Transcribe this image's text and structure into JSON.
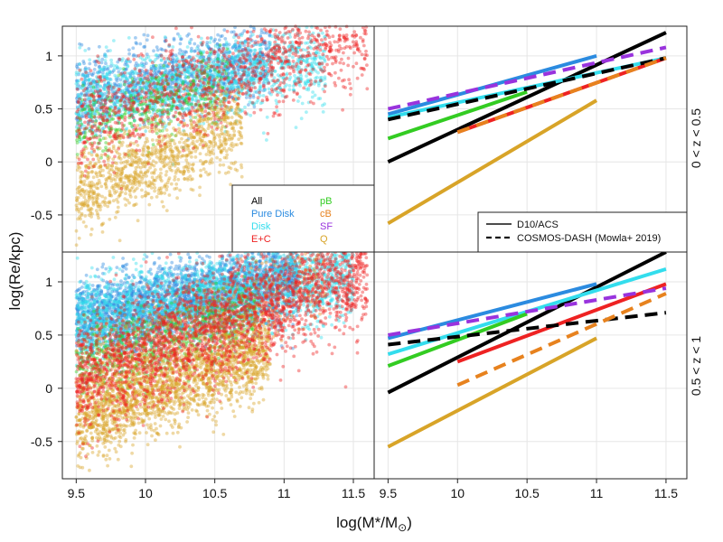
{
  "chart_data": {
    "type": "scatter",
    "xlabel": "log(M*/M⊙)",
    "ylabel": "log(Re/kpc)",
    "xlim": [
      9.4,
      11.65
    ],
    "ylim": [
      -0.85,
      1.28
    ],
    "xticks": [
      9.5,
      10,
      10.5,
      11,
      11.5
    ],
    "xtick_labels": [
      "9.5",
      "10",
      "10.5",
      "11",
      "11.5"
    ],
    "yticks": [
      -0.5,
      0,
      0.5,
      1
    ],
    "ytick_labels": [
      "-0.5",
      "0",
      "0.5",
      "1"
    ],
    "grid": true,
    "colors": {
      "All": "#000000",
      "Pure Disk": "#2b8be0",
      "Disk": "#33dded",
      "E+C": "#ee2222",
      "pB": "#33cc22",
      "cB": "#e7821e",
      "SF": "#9933dd",
      "Q": "#d8a428"
    },
    "legend_classes": {
      "placement": "bottom-right of top-left panel",
      "entries": [
        "All",
        "Pure Disk",
        "Disk",
        "E+C",
        "pB",
        "cB",
        "SF",
        "Q"
      ]
    },
    "legend_styles": {
      "placement": "bottom-right of top-right panel",
      "entries": [
        {
          "label": "D10/ACS",
          "dash": "solid"
        },
        {
          "label": "COSMOS-DASH (Mowla+ 2019)",
          "dash": "dashed"
        }
      ]
    },
    "panels": [
      {
        "redshift_label": "0 < z < 0.5",
        "scatter_series": [
          {
            "name": "Pure Disk",
            "count": 1100,
            "xmin": 9.5,
            "xmax": 10.9,
            "slope": 0.25,
            "intercept": 0.62,
            "scatter": 0.17
          },
          {
            "name": "Disk",
            "count": 1500,
            "xmin": 9.5,
            "xmax": 11.3,
            "slope": 0.22,
            "intercept": 0.56,
            "scatter": 0.18
          },
          {
            "name": "pB",
            "count": 380,
            "xmin": 9.5,
            "xmax": 10.6,
            "slope": 0.4,
            "intercept": 0.32,
            "scatter": 0.16
          },
          {
            "name": "Q",
            "count": 1100,
            "xmin": 9.5,
            "xmax": 10.7,
            "slope": 0.55,
            "intercept": -0.3,
            "scatter": 0.2
          },
          {
            "name": "E+C",
            "count": 1200,
            "xmin": 9.5,
            "xmax": 11.6,
            "slope": 0.42,
            "intercept": 0.35,
            "scatter": 0.24
          }
        ],
        "fit_lines": [
          {
            "name": "All",
            "dash": "solid",
            "x": [
              9.5,
              11.5
            ],
            "y": [
              0.0,
              1.22
            ]
          },
          {
            "name": "Pure Disk",
            "dash": "solid",
            "x": [
              9.5,
              11.0
            ],
            "y": [
              0.45,
              1.0
            ]
          },
          {
            "name": "Disk",
            "dash": "solid",
            "x": [
              9.5,
              11.5
            ],
            "y": [
              0.42,
              0.98
            ]
          },
          {
            "name": "pB",
            "dash": "solid",
            "x": [
              9.5,
              10.5
            ],
            "y": [
              0.22,
              0.66
            ]
          },
          {
            "name": "E+C",
            "dash": "solid",
            "x": [
              10.0,
              11.5
            ],
            "y": [
              0.28,
              0.98
            ]
          },
          {
            "name": "Q",
            "dash": "solid",
            "x": [
              9.5,
              11.0
            ],
            "y": [
              -0.58,
              0.58
            ]
          },
          {
            "name": "SF",
            "dash": "dashed",
            "x": [
              9.5,
              11.5
            ],
            "y": [
              0.5,
              1.08
            ]
          },
          {
            "name": "All",
            "dash": "dashed",
            "x": [
              9.5,
              11.5
            ],
            "y": [
              0.4,
              0.98
            ]
          },
          {
            "name": "cB",
            "dash": "dashed",
            "x": [
              10.0,
              11.5
            ],
            "y": [
              0.28,
              0.98
            ]
          }
        ]
      },
      {
        "redshift_label": "0.5 < z < 1",
        "scatter_series": [
          {
            "name": "Pure Disk",
            "count": 2600,
            "xmin": 9.5,
            "xmax": 11.1,
            "slope": 0.25,
            "intercept": 0.65,
            "scatter": 0.18
          },
          {
            "name": "Disk",
            "count": 2400,
            "xmin": 9.5,
            "xmax": 11.5,
            "slope": 0.25,
            "intercept": 0.6,
            "scatter": 0.2
          },
          {
            "name": "pB",
            "count": 700,
            "xmin": 9.5,
            "xmax": 10.8,
            "slope": 0.4,
            "intercept": 0.2,
            "scatter": 0.17
          },
          {
            "name": "Q",
            "count": 2000,
            "xmin": 9.5,
            "xmax": 10.9,
            "slope": 0.45,
            "intercept": -0.28,
            "scatter": 0.2
          },
          {
            "name": "cB",
            "count": 500,
            "xmin": 9.5,
            "xmax": 11.3,
            "slope": 0.5,
            "intercept": 0.15,
            "scatter": 0.22
          },
          {
            "name": "E+C",
            "count": 2600,
            "xmin": 9.5,
            "xmax": 11.6,
            "slope": 0.5,
            "intercept": 0.1,
            "scatter": 0.27
          }
        ],
        "fit_lines": [
          {
            "name": "All",
            "dash": "solid",
            "x": [
              9.5,
              11.5
            ],
            "y": [
              -0.04,
              1.28
            ]
          },
          {
            "name": "Pure Disk",
            "dash": "solid",
            "x": [
              9.5,
              11.0
            ],
            "y": [
              0.47,
              0.98
            ]
          },
          {
            "name": "Disk",
            "dash": "solid",
            "x": [
              9.5,
              11.5
            ],
            "y": [
              0.32,
              1.12
            ]
          },
          {
            "name": "pB",
            "dash": "solid",
            "x": [
              9.5,
              10.5
            ],
            "y": [
              0.21,
              0.7
            ]
          },
          {
            "name": "E+C",
            "dash": "solid",
            "x": [
              10.0,
              11.5
            ],
            "y": [
              0.25,
              0.98
            ]
          },
          {
            "name": "Q",
            "dash": "solid",
            "x": [
              9.5,
              11.0
            ],
            "y": [
              -0.55,
              0.47
            ]
          },
          {
            "name": "SF",
            "dash": "dashed",
            "x": [
              9.5,
              11.5
            ],
            "y": [
              0.5,
              0.94
            ]
          },
          {
            "name": "All",
            "dash": "dashed",
            "x": [
              9.5,
              11.5
            ],
            "y": [
              0.41,
              0.71
            ]
          },
          {
            "name": "cB",
            "dash": "dashed",
            "x": [
              10.0,
              11.5
            ],
            "y": [
              0.03,
              0.89
            ]
          }
        ]
      }
    ]
  }
}
